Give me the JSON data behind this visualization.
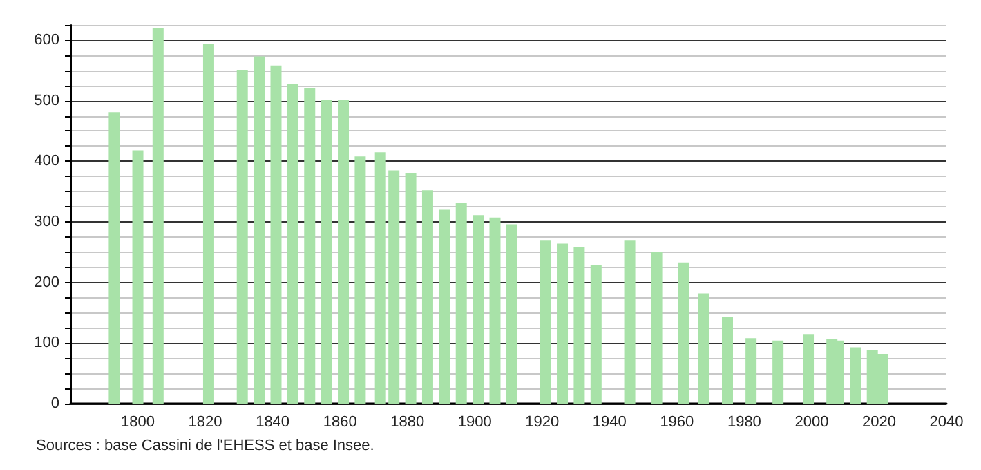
{
  "chart_data": {
    "type": "bar",
    "x": [
      1793,
      1800,
      1806,
      1821,
      1831,
      1836,
      1841,
      1846,
      1851,
      1856,
      1861,
      1866,
      1872,
      1876,
      1881,
      1886,
      1891,
      1896,
      1901,
      1906,
      1911,
      1921,
      1926,
      1931,
      1936,
      1946,
      1954,
      1962,
      1968,
      1975,
      1982,
      1990,
      1999,
      2006,
      2008,
      2013,
      2018,
      2021
    ],
    "values": [
      481,
      418,
      620,
      594,
      551,
      573,
      558,
      527,
      521,
      501,
      501,
      408,
      415,
      385,
      380,
      352,
      320,
      331,
      311,
      307,
      296,
      270,
      264,
      259,
      229,
      270,
      251,
      233,
      182,
      143,
      108,
      104,
      115,
      106,
      104,
      93,
      89,
      82
    ],
    "color": "#a8e2a8",
    "xlim": [
      1780,
      2040
    ],
    "xticks": [
      1800,
      1820,
      1840,
      1860,
      1880,
      1900,
      1920,
      1940,
      1960,
      1980,
      2000,
      2020,
      2040
    ],
    "ylim": [
      0,
      625
    ],
    "yticks": [
      0,
      100,
      200,
      300,
      400,
      500,
      600
    ],
    "grid": "y",
    "annotations": [
      "Sources : base Cassini de l'EHESS et base Insee."
    ]
  }
}
